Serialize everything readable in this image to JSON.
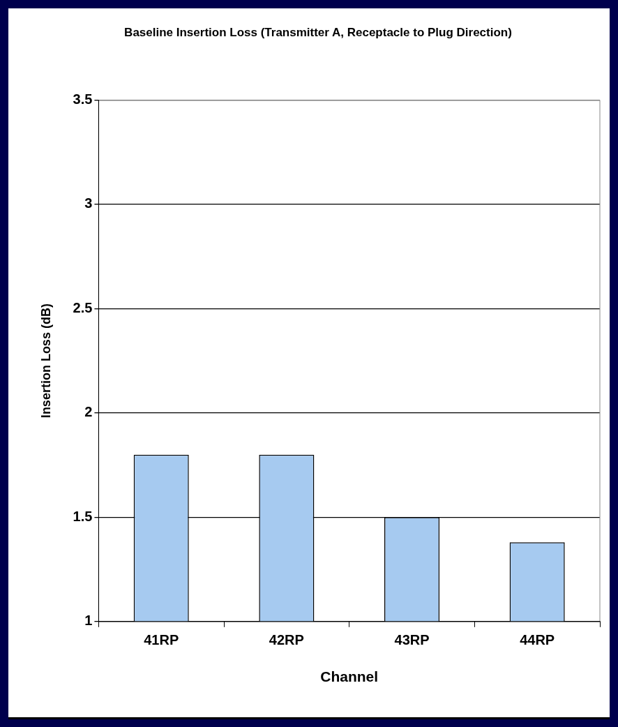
{
  "chart_data": {
    "type": "bar",
    "title": "Baseline Insertion Loss (Transmitter A, Receptacle to Plug Direction)",
    "xlabel": "Channel",
    "ylabel": "Insertion Loss (dB)",
    "categories": [
      "41RP",
      "42RP",
      "43RP",
      "44RP"
    ],
    "values": [
      1.8,
      1.8,
      1.5,
      1.38
    ],
    "color": "#a6caf0",
    "ylim": [
      1,
      3.5
    ],
    "yticks": [
      1,
      1.5,
      2,
      2.5,
      3,
      3.5
    ],
    "grid": "y",
    "legend": false
  }
}
